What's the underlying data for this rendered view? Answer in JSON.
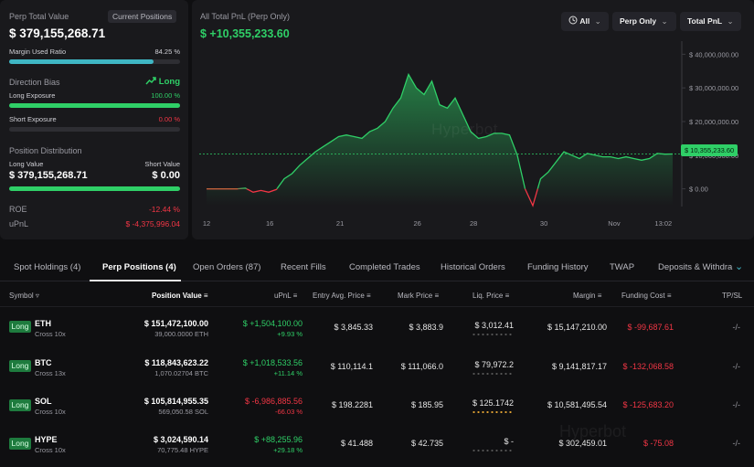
{
  "summary": {
    "perp_total_value_label": "Perp Total Value",
    "current_positions_tag": "Current Positions",
    "perp_total_value": "$ 379,155,268.71",
    "margin_used_label": "Margin Used Ratio",
    "margin_used_value": "84.25 %",
    "margin_used_fraction": 0.8425,
    "direction_bias_label": "Direction Bias",
    "direction_bias_value": "Long",
    "long_exposure_label": "Long Exposure",
    "long_exposure_value": "100.00 %",
    "long_exposure_fraction": 1.0,
    "short_exposure_label": "Short Exposure",
    "short_exposure_value": "0.00 %",
    "short_exposure_fraction": 0.0,
    "position_distribution_label": "Position Distribution",
    "long_value_label": "Long Value",
    "short_value_label": "Short Value",
    "long_value": "$ 379,155,268.71",
    "short_value": "$ 0.00",
    "roe_label": "ROE",
    "roe_value": "-12.44 %",
    "upnl_label": "uPnL",
    "upnl_value": "$ -4,375,996.04"
  },
  "chart_header": {
    "title": "All Total PnL (Perp Only)",
    "value": "$ +10,355,233.60",
    "filter_all": "All",
    "filter_perp": "Perp Only",
    "filter_total": "Total PnL",
    "current_value_tag": "$ 10,355,233.60",
    "watermark": "Hyperbot"
  },
  "chart_data": {
    "type": "area",
    "x_tick_labels": [
      "12",
      "16",
      "21",
      "26",
      "28",
      "30",
      "Nov",
      "13:02"
    ],
    "y_tick_labels": [
      "$ 40,000,000.00",
      "$ 30,000,000.00",
      "$ 20,000,000.00",
      "$ 10,000,000.00",
      "$ 0.00"
    ],
    "ylim": [
      -5000000,
      42000000
    ],
    "x": [
      0,
      1,
      2,
      3,
      4,
      5,
      6,
      7,
      8,
      9,
      10,
      11,
      12,
      13,
      14,
      15,
      16,
      17,
      18,
      19,
      20,
      21,
      22,
      23,
      24,
      25,
      26,
      27,
      28,
      29,
      30,
      31,
      32,
      33,
      34,
      35,
      36,
      37,
      38,
      39,
      40,
      41,
      42,
      43,
      44,
      45,
      46,
      47,
      48,
      49,
      50,
      51,
      52,
      53,
      54,
      55,
      56,
      57,
      58,
      59,
      60
    ],
    "values": [
      0,
      0,
      0,
      0,
      0,
      200000,
      -1000000,
      -500000,
      -1000000,
      -200000,
      3000000,
      4500000,
      7000000,
      9000000,
      11000000,
      12500000,
      14000000,
      15500000,
      16000000,
      15500000,
      15000000,
      17000000,
      18000000,
      20000000,
      24000000,
      27000000,
      34000000,
      30000000,
      28000000,
      32000000,
      25000000,
      24000000,
      27000000,
      22000000,
      17000000,
      15000000,
      15500000,
      16500000,
      16500000,
      16000000,
      10000000,
      0,
      -5000000,
      3000000,
      5000000,
      8000000,
      11000000,
      10000000,
      9000000,
      10500000,
      10000000,
      9500000,
      9500000,
      9000000,
      9500000,
      9000000,
      8500000,
      9000000,
      10500000,
      10300000,
      10355234
    ],
    "tick_positions": [
      0,
      9,
      19,
      30,
      38,
      48,
      58,
      65
    ]
  },
  "tabs": [
    "Spot Holdings (4)",
    "Perp Positions (4)",
    "Open Orders (87)",
    "Recent Fills",
    "Completed Trades",
    "Historical Orders",
    "Funding History",
    "TWAP",
    "Deposits & Withdra"
  ],
  "active_tab": "Perp Positions (4)",
  "columns": [
    "Symbol",
    "Position Value",
    "uPnL",
    "Entry Avg. Price",
    "Mark Price",
    "Liq. Price",
    "Margin",
    "Funding Cost",
    "TP/SL"
  ],
  "rows": [
    {
      "side": "Long",
      "symbol": "ETH",
      "leverage": "Cross 10x",
      "value": "$ 151,472,100.00",
      "qty": "39,000.0000 ETH",
      "upnl": "$ +1,504,100.00",
      "upnl_pct": "+9.93 %",
      "upnl_neg": false,
      "entry": "$ 3,845.33",
      "mark": "$ 3,883.9",
      "liq": "$ 3,012.41",
      "margin": "$ 15,147,210.00",
      "funding": "$ -99,687.61",
      "tpsl": "-/-"
    },
    {
      "side": "Long",
      "symbol": "BTC",
      "leverage": "Cross 13x",
      "value": "$ 118,843,623.22",
      "qty": "1,070.02704 BTC",
      "upnl": "$ +1,018,533.56",
      "upnl_pct": "+11.14 %",
      "upnl_neg": false,
      "entry": "$ 110,114.1",
      "mark": "$ 111,066.0",
      "liq": "$ 79,972.2",
      "margin": "$ 9,141,817.17",
      "funding": "$ -132,068.58",
      "tpsl": "-/-"
    },
    {
      "side": "Long",
      "symbol": "SOL",
      "leverage": "Cross 10x",
      "value": "$ 105,814,955.35",
      "qty": "569,050.58 SOL",
      "upnl": "$ -6,986,885.56",
      "upnl_pct": "-66.03 %",
      "upnl_neg": true,
      "entry": "$ 198.2281",
      "mark": "$ 185.95",
      "liq": "$ 125.1742",
      "margin": "$ 10,581,495.54",
      "funding": "$ -125,683.20",
      "tpsl": "-/-"
    },
    {
      "side": "Long",
      "symbol": "HYPE",
      "leverage": "Cross 10x",
      "value": "$ 3,024,590.14",
      "qty": "70,775.48 HYPE",
      "upnl": "$ +88,255.96",
      "upnl_pct": "+29.18 %",
      "upnl_neg": false,
      "entry": "$ 41.488",
      "mark": "$ 42.735",
      "liq": "$ -",
      "margin": "$ 302,459.01",
      "funding": "$ -75.08",
      "tpsl": "-/-"
    }
  ],
  "colors": {
    "green": "#2fcf67",
    "red": "#f23645",
    "teal": "#3fb6c4",
    "panel": "#19191c"
  }
}
